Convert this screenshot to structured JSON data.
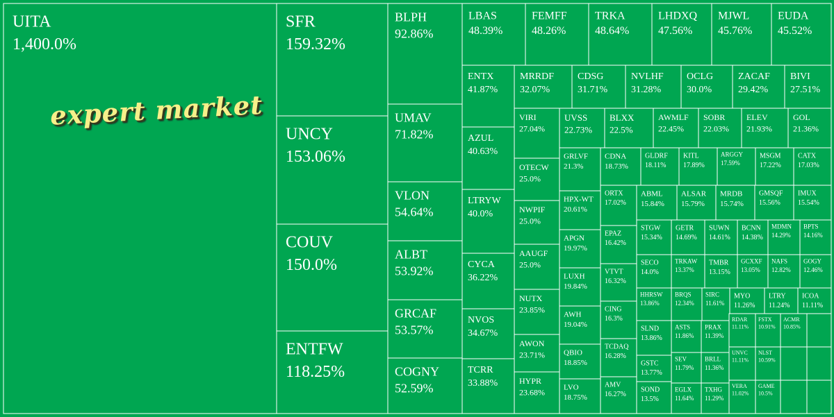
{
  "colors": {
    "fill": "#00A651",
    "border": "#ffffff",
    "text": "#ffffff",
    "watermark": "#f6f08a"
  },
  "watermark": "expert market",
  "chart_data": {
    "type": "treemap",
    "value_unit": "%",
    "items": [
      {
        "ticker": "UITA",
        "value": 1400.0,
        "label": "1,400.0%"
      },
      {
        "ticker": "SFR",
        "value": 159.32,
        "label": "159.32%"
      },
      {
        "ticker": "UNCY",
        "value": 153.06,
        "label": "153.06%"
      },
      {
        "ticker": "COUV",
        "value": 150.0,
        "label": "150.0%"
      },
      {
        "ticker": "ENTFW",
        "value": 118.25,
        "label": "118.25%"
      },
      {
        "ticker": "BLPH",
        "value": 92.86,
        "label": "92.86%"
      },
      {
        "ticker": "UMAV",
        "value": 71.82,
        "label": "71.82%"
      },
      {
        "ticker": "VLON",
        "value": 54.64,
        "label": "54.64%"
      },
      {
        "ticker": "ALBT",
        "value": 53.92,
        "label": "53.92%"
      },
      {
        "ticker": "GRCAF",
        "value": 53.57,
        "label": "53.57%"
      },
      {
        "ticker": "COGNY",
        "value": 52.59,
        "label": "52.59%"
      },
      {
        "ticker": "LBAS",
        "value": 48.39,
        "label": "48.39%"
      },
      {
        "ticker": "FEMFF",
        "value": 48.26,
        "label": "48.26%"
      },
      {
        "ticker": "TRKA",
        "value": 48.64,
        "label": "48.64%"
      },
      {
        "ticker": "LHDXQ",
        "value": 47.56,
        "label": "47.56%"
      },
      {
        "ticker": "MJWL",
        "value": 45.76,
        "label": "45.76%"
      },
      {
        "ticker": "EUDA",
        "value": 45.52,
        "label": "45.52%"
      },
      {
        "ticker": "ENTX",
        "value": 41.87,
        "label": "41.87%"
      },
      {
        "ticker": "AZUL",
        "value": 40.63,
        "label": "40.63%"
      },
      {
        "ticker": "LTRYW",
        "value": 40.0,
        "label": "40.0%"
      },
      {
        "ticker": "CYCA",
        "value": 36.22,
        "label": "36.22%"
      },
      {
        "ticker": "NVOS",
        "value": 34.67,
        "label": "34.67%"
      },
      {
        "ticker": "TCRR",
        "value": 33.88,
        "label": "33.88%"
      },
      {
        "ticker": "MRRDF",
        "value": 32.07,
        "label": "32.07%"
      },
      {
        "ticker": "CDSG",
        "value": 31.71,
        "label": "31.71%"
      },
      {
        "ticker": "NVLHF",
        "value": 31.28,
        "label": "31.28%"
      },
      {
        "ticker": "OCLG",
        "value": 30.0,
        "label": "30.0%"
      },
      {
        "ticker": "ZACAF",
        "value": 29.42,
        "label": "29.42%"
      },
      {
        "ticker": "BIVI",
        "value": 27.51,
        "label": "27.51%"
      },
      {
        "ticker": "VIRI",
        "value": 27.04,
        "label": "27.04%"
      },
      {
        "ticker": "OTECW",
        "value": 25.0,
        "label": "25.0%"
      },
      {
        "ticker": "NWPIF",
        "value": 25.0,
        "label": "25.0%"
      },
      {
        "ticker": "AAUGF",
        "value": 25.0,
        "label": "25.0%"
      },
      {
        "ticker": "NUTX",
        "value": 23.85,
        "label": "23.85%"
      },
      {
        "ticker": "AWON",
        "value": 23.71,
        "label": "23.71%"
      },
      {
        "ticker": "HYPR",
        "value": 23.68,
        "label": "23.68%"
      },
      {
        "ticker": "UVSS",
        "value": 22.73,
        "label": "22.73%"
      },
      {
        "ticker": "BLXX",
        "value": 22.5,
        "label": "22.5%"
      },
      {
        "ticker": "AWMLF",
        "value": 22.45,
        "label": "22.45%"
      },
      {
        "ticker": "SOBR",
        "value": 22.03,
        "label": "22.03%"
      },
      {
        "ticker": "ELEV",
        "value": 21.93,
        "label": "21.93%"
      },
      {
        "ticker": "GOL",
        "value": 21.36,
        "label": "21.36%"
      },
      {
        "ticker": "GRLVF",
        "value": 21.3,
        "label": "21.3%"
      },
      {
        "ticker": "HPX-WT",
        "value": 20.61,
        "label": "20.61%"
      },
      {
        "ticker": "APGN",
        "value": 19.97,
        "label": "19.97%"
      },
      {
        "ticker": "LUXH",
        "value": 19.84,
        "label": "19.84%"
      },
      {
        "ticker": "AWH",
        "value": 19.04,
        "label": "19.04%"
      },
      {
        "ticker": "QBIO",
        "value": 18.85,
        "label": "18.85%"
      },
      {
        "ticker": "LVO",
        "value": 18.75,
        "label": "18.75%"
      },
      {
        "ticker": "CDNA",
        "value": 18.73,
        "label": "18.73%"
      },
      {
        "ticker": "GLDRF",
        "value": 18.11,
        "label": "18.11%"
      },
      {
        "ticker": "KITL",
        "value": 17.89,
        "label": "17.89%"
      },
      {
        "ticker": "ARGGY",
        "value": 17.59,
        "label": "17.59%"
      },
      {
        "ticker": "MSGM",
        "value": 17.22,
        "label": "17.22%"
      },
      {
        "ticker": "CATX",
        "value": 17.03,
        "label": "17.03%"
      },
      {
        "ticker": "ORTX",
        "value": 17.02,
        "label": "17.02%"
      },
      {
        "ticker": "EPAZ",
        "value": 16.42,
        "label": "16.42%"
      },
      {
        "ticker": "VTVT",
        "value": 16.32,
        "label": "16.32%"
      },
      {
        "ticker": "CING",
        "value": 16.3,
        "label": "16.3%"
      },
      {
        "ticker": "TCDAQ",
        "value": 16.28,
        "label": "16.28%"
      },
      {
        "ticker": "AMV",
        "value": 16.27,
        "label": "16.27%"
      },
      {
        "ticker": "ABML",
        "value": 15.84,
        "label": "15.84%"
      },
      {
        "ticker": "ALSAR",
        "value": 15.79,
        "label": "15.79%"
      },
      {
        "ticker": "MRDB",
        "value": 15.74,
        "label": "15.74%"
      },
      {
        "ticker": "GMSQF",
        "value": 15.56,
        "label": "15.56%"
      },
      {
        "ticker": "IMUX",
        "value": 15.54,
        "label": "15.54%"
      },
      {
        "ticker": "STGW",
        "value": 15.34,
        "label": "15.34%"
      },
      {
        "ticker": "GETR",
        "value": 14.69,
        "label": "14.69%"
      },
      {
        "ticker": "SUWN",
        "value": 14.61,
        "label": "14.61%"
      },
      {
        "ticker": "BCNN",
        "value": 14.38,
        "label": "14.38%"
      },
      {
        "ticker": "MDMN",
        "value": 14.29,
        "label": "14.29%"
      },
      {
        "ticker": "BPTS",
        "value": 14.16,
        "label": "14.16%"
      },
      {
        "ticker": "SECO",
        "value": 14.0,
        "label": "14.0%"
      },
      {
        "ticker": "TRKAW",
        "value": 13.37,
        "label": "13.37%"
      },
      {
        "ticker": "TMBR",
        "value": 13.15,
        "label": "13.15%"
      },
      {
        "ticker": "GCXXF",
        "value": 13.05,
        "label": "13.05%"
      },
      {
        "ticker": "NAFS",
        "value": 12.82,
        "label": "12.82%"
      },
      {
        "ticker": "GOGY",
        "value": 12.46,
        "label": "12.46%"
      },
      {
        "ticker": "HHRSW",
        "value": 13.86,
        "label": "13.86%"
      },
      {
        "ticker": "BRQS",
        "value": 12.34,
        "label": "12.34%"
      },
      {
        "ticker": "SIRC",
        "value": 11.61,
        "label": "11.61%"
      },
      {
        "ticker": "MYO",
        "value": 11.26,
        "label": "11.26%"
      },
      {
        "ticker": "LTRY",
        "value": 11.24,
        "label": "11.24%"
      },
      {
        "ticker": "ICOA",
        "value": 11.11,
        "label": "11.11%"
      },
      {
        "ticker": "SLND",
        "value": 13.86,
        "label": "13.86%"
      },
      {
        "ticker": "ASTS",
        "value": 11.86,
        "label": "11.86%"
      },
      {
        "ticker": "PRAX",
        "value": 11.39,
        "label": "11.39%"
      },
      {
        "ticker": "RDAR",
        "value": 11.11,
        "label": "11.11%"
      },
      {
        "ticker": "FSTX",
        "value": 10.91,
        "label": "10.91%"
      },
      {
        "ticker": "ACMR",
        "value": 10.85,
        "label": "10.85%"
      },
      {
        "ticker": "GSTC",
        "value": 13.77,
        "label": "13.77%"
      },
      {
        "ticker": "SEV",
        "value": 11.79,
        "label": "11.79%"
      },
      {
        "ticker": "BRLL",
        "value": 11.36,
        "label": "11.36%"
      },
      {
        "ticker": "UNVC",
        "value": 11.11,
        "label": "11.11%"
      },
      {
        "ticker": "NLST",
        "value": 10.59,
        "label": "10.59%"
      },
      {
        "ticker": "SOND",
        "value": 13.5,
        "label": "13.5%"
      },
      {
        "ticker": "EGLX",
        "value": 11.64,
        "label": "11.64%"
      },
      {
        "ticker": "TXHG",
        "value": 11.29,
        "label": "11.29%"
      },
      {
        "ticker": "VERA",
        "value": 11.02,
        "label": "11.02%"
      },
      {
        "ticker": "GAME",
        "value": 10.5,
        "label": "10.5%"
      },
      {
        "ticker": "",
        "value": null,
        "label": ""
      },
      {
        "ticker": "",
        "value": null,
        "label": ""
      },
      {
        "ticker": "",
        "value": null,
        "label": ""
      },
      {
        "ticker": "",
        "value": null,
        "label": ""
      },
      {
        "ticker": "",
        "value": null,
        "label": ""
      },
      {
        "ticker": "",
        "value": null,
        "label": ""
      }
    ]
  }
}
